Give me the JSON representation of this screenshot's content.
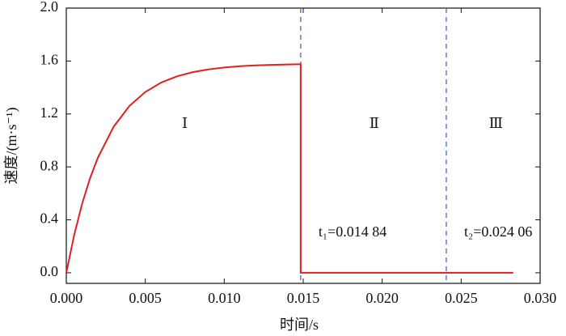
{
  "chart_data": {
    "type": "line",
    "x_label": "时间/s",
    "y_label": "速度/(m·s⁻¹)",
    "xlim": [
      0,
      0.03
    ],
    "ylim": [
      -0.08,
      2.0
    ],
    "xticks": [
      {
        "value": 0,
        "label": "0.000"
      },
      {
        "value": 0.005,
        "label": "0.005"
      },
      {
        "value": 0.01,
        "label": "0.010"
      },
      {
        "value": 0.015,
        "label": "0.015"
      },
      {
        "value": 0.02,
        "label": "0.020"
      },
      {
        "value": 0.025,
        "label": "0.025"
      },
      {
        "value": 0.03,
        "label": "0.030"
      }
    ],
    "yticks": [
      {
        "value": 0,
        "label": "0.0"
      },
      {
        "value": 0.4,
        "label": "0.4"
      },
      {
        "value": 0.8,
        "label": "0.8"
      },
      {
        "value": 1.2,
        "label": "1.2"
      },
      {
        "value": 1.6,
        "label": "1.6"
      },
      {
        "value": 2,
        "label": "2.0"
      }
    ],
    "x": [
      0,
      0.0005,
      0.001,
      0.0015,
      0.002,
      0.003,
      0.004,
      0.005,
      0.006,
      0.007,
      0.008,
      0.009,
      0.01,
      0.011,
      0.012,
      0.013,
      0.014,
      0.01484,
      0.01484,
      0.0283
    ],
    "series": [
      {
        "color": "#e02020",
        "values": [
          0,
          0.286,
          0.521,
          0.713,
          0.87,
          1.104,
          1.261,
          1.366,
          1.437,
          1.484,
          1.516,
          1.537,
          1.551,
          1.561,
          1.567,
          1.571,
          1.574,
          1.576,
          0,
          0
        ]
      }
    ],
    "vlines": [
      {
        "value": 0.01484,
        "label": "t₁=0.014 84"
      },
      {
        "value": 0.02406,
        "label": "t₂=0.024 06"
      }
    ],
    "vline_color": "#4169c8",
    "regions": [
      "Ⅰ",
      "Ⅱ",
      "Ⅲ"
    ]
  }
}
